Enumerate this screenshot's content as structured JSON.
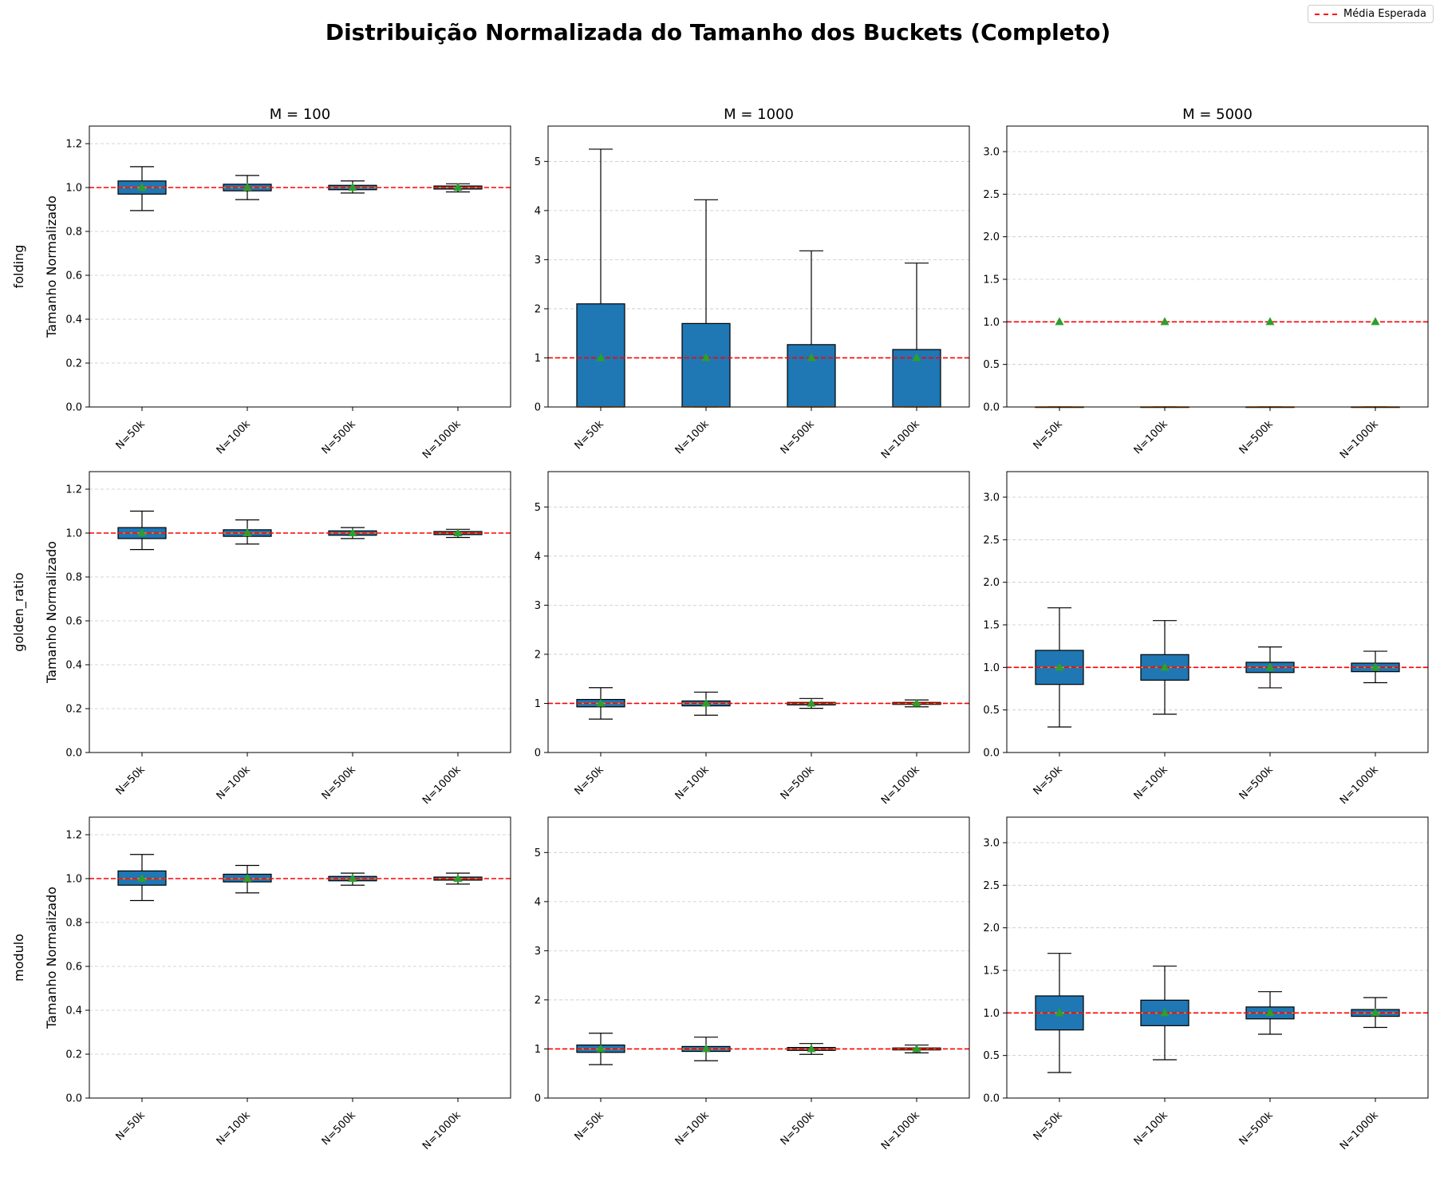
{
  "figure": {
    "title": "Distribuição Normalizada do Tamanho dos Buckets (Completo)",
    "legend": {
      "label": "Média Esperada",
      "color": "#ff0000"
    }
  },
  "colors": {
    "box": "#1f77b4",
    "median": "#ff7f0e",
    "mean": "#2ca02c",
    "reference": "#ff0000",
    "grid": "#b0b0b0"
  },
  "chart_data": {
    "type": "box",
    "row_labels": [
      "folding",
      "golden_ratio",
      "modulo"
    ],
    "column_titles": [
      "M = 100",
      "M = 1000",
      "M = 5000"
    ],
    "ylabel": "Tamanho Normalizado",
    "categories": [
      "N=50k",
      "N=100k",
      "N=500k",
      "N=1000k"
    ],
    "reference_line": {
      "label": "Média Esperada",
      "y": 1.0
    },
    "column_axes": [
      {
        "ylim": [
          0,
          1.28
        ],
        "yticks": [
          "0.0",
          "0.2",
          "0.4",
          "0.6",
          "0.8",
          "1.0",
          "1.2"
        ],
        "tick_values": [
          0,
          0.2,
          0.4,
          0.6,
          0.8,
          1.0,
          1.2
        ]
      },
      {
        "ylim": [
          0,
          5.72
        ],
        "yticks": [
          "0",
          "1",
          "2",
          "3",
          "4",
          "5"
        ],
        "tick_values": [
          0,
          1,
          2,
          3,
          4,
          5
        ]
      },
      {
        "ylim": [
          0,
          3.3
        ],
        "yticks": [
          "0.0",
          "0.5",
          "1.0",
          "1.5",
          "2.0",
          "2.5",
          "3.0"
        ],
        "tick_values": [
          0,
          0.5,
          1.0,
          1.5,
          2.0,
          2.5,
          3.0
        ]
      }
    ],
    "panels": [
      {
        "row": "folding",
        "column": "M = 100",
        "boxes": [
          {
            "category": "N=50k",
            "whisker_low": 0.895,
            "q1": 0.97,
            "median": 1.0,
            "q3": 1.03,
            "whisker_high": 1.095,
            "mean": 1.0
          },
          {
            "category": "N=100k",
            "whisker_low": 0.945,
            "q1": 0.985,
            "median": 1.0,
            "q3": 1.015,
            "whisker_high": 1.055,
            "mean": 1.0
          },
          {
            "category": "N=500k",
            "whisker_low": 0.975,
            "q1": 0.99,
            "median": 1.0,
            "q3": 1.01,
            "whisker_high": 1.03,
            "mean": 1.0
          },
          {
            "category": "N=1000k",
            "whisker_low": 0.98,
            "q1": 0.993,
            "median": 1.0,
            "q3": 1.007,
            "whisker_high": 1.017,
            "mean": 1.0
          }
        ]
      },
      {
        "row": "folding",
        "column": "M = 1000",
        "boxes": [
          {
            "category": "N=50k",
            "whisker_low": 0.0,
            "q1": 0.0,
            "median": 0.0,
            "q3": 2.1,
            "whisker_high": 5.25,
            "mean": 1.0
          },
          {
            "category": "N=100k",
            "whisker_low": 0.0,
            "q1": 0.0,
            "median": 0.0,
            "q3": 1.7,
            "whisker_high": 4.22,
            "mean": 1.0
          },
          {
            "category": "N=500k",
            "whisker_low": 0.0,
            "q1": 0.0,
            "median": 0.0,
            "q3": 1.27,
            "whisker_high": 3.18,
            "mean": 1.0
          },
          {
            "category": "N=1000k",
            "whisker_low": 0.0,
            "q1": 0.0,
            "median": 0.0,
            "q3": 1.17,
            "whisker_high": 2.93,
            "mean": 1.0
          }
        ]
      },
      {
        "row": "folding",
        "column": "M = 5000",
        "boxes": [
          {
            "category": "N=50k",
            "whisker_low": 0.0,
            "q1": 0.0,
            "median": 0.0,
            "q3": 0.0,
            "whisker_high": 0.0,
            "mean": 1.0
          },
          {
            "category": "N=100k",
            "whisker_low": 0.0,
            "q1": 0.0,
            "median": 0.0,
            "q3": 0.0,
            "whisker_high": 0.0,
            "mean": 1.0
          },
          {
            "category": "N=500k",
            "whisker_low": 0.0,
            "q1": 0.0,
            "median": 0.0,
            "q3": 0.0,
            "whisker_high": 0.0,
            "mean": 1.0
          },
          {
            "category": "N=1000k",
            "whisker_low": 0.0,
            "q1": 0.0,
            "median": 0.0,
            "q3": 0.0,
            "whisker_high": 0.0,
            "mean": 1.0
          }
        ]
      },
      {
        "row": "golden_ratio",
        "column": "M = 100",
        "boxes": [
          {
            "category": "N=50k",
            "whisker_low": 0.925,
            "q1": 0.975,
            "median": 1.0,
            "q3": 1.025,
            "whisker_high": 1.1,
            "mean": 1.0
          },
          {
            "category": "N=100k",
            "whisker_low": 0.95,
            "q1": 0.985,
            "median": 1.0,
            "q3": 1.015,
            "whisker_high": 1.06,
            "mean": 1.0
          },
          {
            "category": "N=500k",
            "whisker_low": 0.975,
            "q1": 0.99,
            "median": 1.0,
            "q3": 1.01,
            "whisker_high": 1.025,
            "mean": 1.0
          },
          {
            "category": "N=1000k",
            "whisker_low": 0.98,
            "q1": 0.993,
            "median": 1.0,
            "q3": 1.007,
            "whisker_high": 1.017,
            "mean": 1.0
          }
        ]
      },
      {
        "row": "golden_ratio",
        "column": "M = 1000",
        "boxes": [
          {
            "category": "N=50k",
            "whisker_low": 0.68,
            "q1": 0.93,
            "median": 1.0,
            "q3": 1.08,
            "whisker_high": 1.32,
            "mean": 1.0
          },
          {
            "category": "N=100k",
            "whisker_low": 0.76,
            "q1": 0.95,
            "median": 1.0,
            "q3": 1.05,
            "whisker_high": 1.23,
            "mean": 1.0
          },
          {
            "category": "N=500k",
            "whisker_low": 0.9,
            "q1": 0.97,
            "median": 1.0,
            "q3": 1.02,
            "whisker_high": 1.1,
            "mean": 1.0
          },
          {
            "category": "N=1000k",
            "whisker_low": 0.93,
            "q1": 0.98,
            "median": 1.0,
            "q3": 1.02,
            "whisker_high": 1.07,
            "mean": 1.0
          }
        ]
      },
      {
        "row": "golden_ratio",
        "column": "M = 5000",
        "boxes": [
          {
            "category": "N=50k",
            "whisker_low": 0.3,
            "q1": 0.8,
            "median": 1.0,
            "q3": 1.2,
            "whisker_high": 1.7,
            "mean": 1.0
          },
          {
            "category": "N=100k",
            "whisker_low": 0.45,
            "q1": 0.85,
            "median": 1.0,
            "q3": 1.15,
            "whisker_high": 1.55,
            "mean": 1.0
          },
          {
            "category": "N=500k",
            "whisker_low": 0.76,
            "q1": 0.94,
            "median": 1.0,
            "q3": 1.06,
            "whisker_high": 1.24,
            "mean": 1.0
          },
          {
            "category": "N=1000k",
            "whisker_low": 0.82,
            "q1": 0.95,
            "median": 1.0,
            "q3": 1.05,
            "whisker_high": 1.19,
            "mean": 1.0
          }
        ]
      },
      {
        "row": "modulo",
        "column": "M = 100",
        "boxes": [
          {
            "category": "N=50k",
            "whisker_low": 0.9,
            "q1": 0.97,
            "median": 1.0,
            "q3": 1.035,
            "whisker_high": 1.11,
            "mean": 1.0
          },
          {
            "category": "N=100k",
            "whisker_low": 0.935,
            "q1": 0.985,
            "median": 1.0,
            "q3": 1.02,
            "whisker_high": 1.06,
            "mean": 1.0
          },
          {
            "category": "N=500k",
            "whisker_low": 0.97,
            "q1": 0.99,
            "median": 1.0,
            "q3": 1.01,
            "whisker_high": 1.025,
            "mean": 1.0
          },
          {
            "category": "N=1000k",
            "whisker_low": 0.975,
            "q1": 0.993,
            "median": 1.0,
            "q3": 1.007,
            "whisker_high": 1.025,
            "mean": 1.0
          }
        ]
      },
      {
        "row": "modulo",
        "column": "M = 1000",
        "boxes": [
          {
            "category": "N=50k",
            "whisker_low": 0.68,
            "q1": 0.93,
            "median": 1.0,
            "q3": 1.08,
            "whisker_high": 1.32,
            "mean": 1.0
          },
          {
            "category": "N=100k",
            "whisker_low": 0.76,
            "q1": 0.95,
            "median": 1.0,
            "q3": 1.05,
            "whisker_high": 1.24,
            "mean": 1.0
          },
          {
            "category": "N=500k",
            "whisker_low": 0.89,
            "q1": 0.97,
            "median": 1.0,
            "q3": 1.03,
            "whisker_high": 1.11,
            "mean": 1.0
          },
          {
            "category": "N=1000k",
            "whisker_low": 0.92,
            "q1": 0.98,
            "median": 1.0,
            "q3": 1.02,
            "whisker_high": 1.08,
            "mean": 1.0
          }
        ]
      },
      {
        "row": "modulo",
        "column": "M = 5000",
        "boxes": [
          {
            "category": "N=50k",
            "whisker_low": 0.3,
            "q1": 0.8,
            "median": 1.0,
            "q3": 1.2,
            "whisker_high": 1.7,
            "mean": 1.0
          },
          {
            "category": "N=100k",
            "whisker_low": 0.45,
            "q1": 0.85,
            "median": 1.0,
            "q3": 1.15,
            "whisker_high": 1.55,
            "mean": 1.0
          },
          {
            "category": "N=500k",
            "whisker_low": 0.75,
            "q1": 0.93,
            "median": 1.0,
            "q3": 1.07,
            "whisker_high": 1.25,
            "mean": 1.0
          },
          {
            "category": "N=1000k",
            "whisker_low": 0.83,
            "q1": 0.96,
            "median": 1.0,
            "q3": 1.04,
            "whisker_high": 1.18,
            "mean": 1.0
          }
        ]
      }
    ]
  }
}
